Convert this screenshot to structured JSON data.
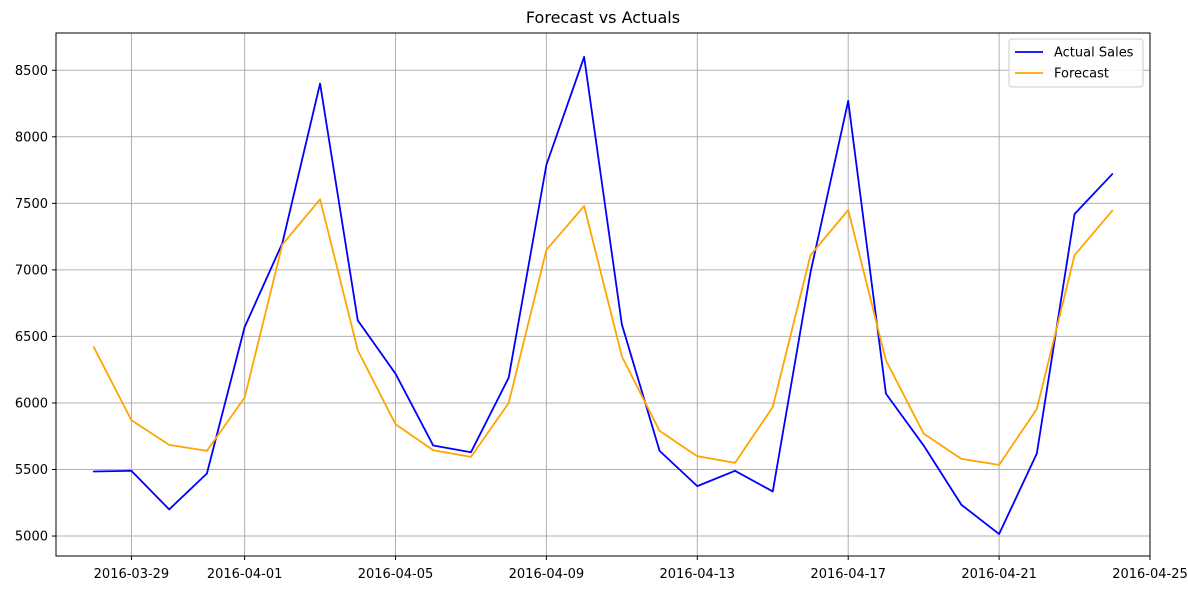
{
  "chart_data": {
    "type": "line",
    "title": "Forecast vs Actuals",
    "xlabel": "",
    "ylabel": "",
    "grid": true,
    "legend_position": "top-right",
    "x": [
      "2016-03-28",
      "2016-03-29",
      "2016-03-30",
      "2016-03-31",
      "2016-04-01",
      "2016-04-02",
      "2016-04-03",
      "2016-04-04",
      "2016-04-05",
      "2016-04-06",
      "2016-04-07",
      "2016-04-08",
      "2016-04-09",
      "2016-04-10",
      "2016-04-11",
      "2016-04-12",
      "2016-04-13",
      "2016-04-14",
      "2016-04-15",
      "2016-04-16",
      "2016-04-17",
      "2016-04-18",
      "2016-04-19",
      "2016-04-20",
      "2016-04-21",
      "2016-04-22",
      "2016-04-23",
      "2016-04-24"
    ],
    "x_ticks": [
      "2016-03-29",
      "2016-04-01",
      "2016-04-05",
      "2016-04-09",
      "2016-04-13",
      "2016-04-17",
      "2016-04-21",
      "2016-04-25"
    ],
    "xlim": [
      "2016-03-27",
      "2016-04-25"
    ],
    "y_ticks": [
      5000,
      5500,
      6000,
      6500,
      7000,
      7500,
      8000,
      8500
    ],
    "ylim": [
      4850,
      8780
    ],
    "series": [
      {
        "name": "Actual Sales",
        "color": "#0000ff",
        "values": [
          5485,
          5490,
          5200,
          5470,
          6570,
          7200,
          8400,
          6620,
          6220,
          5680,
          5630,
          6190,
          7790,
          8600,
          6590,
          5640,
          5375,
          5490,
          5335,
          6980,
          8270,
          6070,
          5680,
          5235,
          5015,
          5620,
          7420,
          7720
        ]
      },
      {
        "name": "Forecast",
        "color": "#ffa500",
        "values": [
          6420,
          5870,
          5685,
          5640,
          6040,
          7190,
          7530,
          6395,
          5840,
          5645,
          5595,
          6000,
          7150,
          7480,
          6350,
          5790,
          5600,
          5550,
          5970,
          7110,
          7450,
          6320,
          5770,
          5580,
          5535,
          5955,
          7110,
          7445
        ]
      }
    ]
  }
}
